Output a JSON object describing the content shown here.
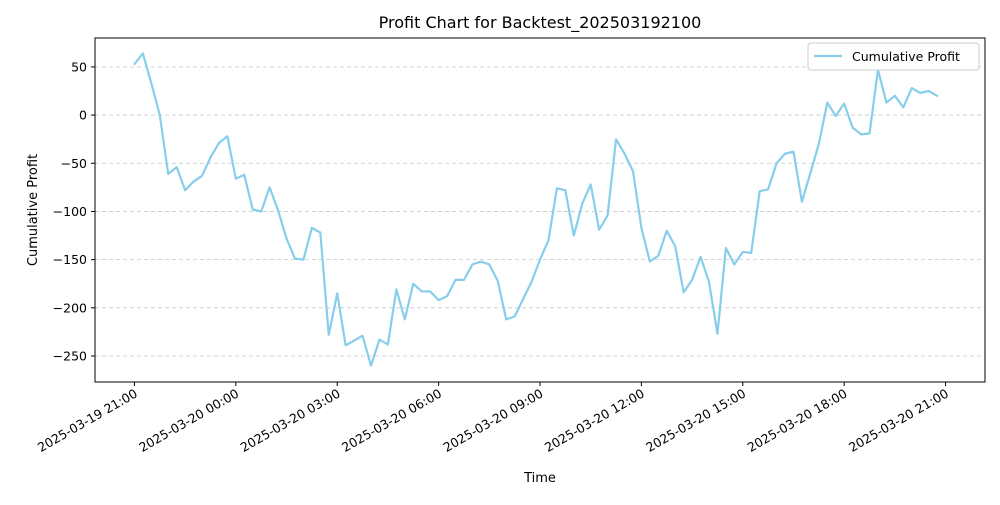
{
  "chart_data": {
    "type": "line",
    "title": "Profit Chart for Backtest_202503192100",
    "xlabel": "Time",
    "ylabel": "Cumulative Profit",
    "ylim": [
      -277,
      80
    ],
    "xlim": [
      "2025-03-19 19:50",
      "2025-03-20 22:10"
    ],
    "grid": "y-only, dashed",
    "legend": {
      "placement": "top-right",
      "entries": [
        "Cumulative Profit"
      ]
    },
    "x_ticks": [
      "2025-03-19 21:00",
      "2025-03-20 00:00",
      "2025-03-20 03:00",
      "2025-03-20 06:00",
      "2025-03-20 09:00",
      "2025-03-20 12:00",
      "2025-03-20 15:00",
      "2025-03-20 18:00",
      "2025-03-20 21:00"
    ],
    "y_ticks": [
      "50",
      "0",
      "−50",
      "−100",
      "−150",
      "−200",
      "−250"
    ],
    "series": [
      {
        "name": "Cumulative Profit",
        "color": "#87CEEB",
        "start": "2025-03-19 21:00",
        "interval_minutes": 15,
        "values": [
          53,
          64,
          33,
          0,
          -61,
          -54,
          -78,
          -69,
          -63,
          -44,
          -29,
          -22,
          -66,
          -62,
          -98,
          -100,
          -75,
          -99,
          -128,
          -149,
          -150,
          -117,
          -122,
          -228,
          -185,
          -239,
          -234,
          -229,
          -260,
          -233,
          -238,
          -181,
          -212,
          -175,
          -183,
          -183,
          -192,
          -188,
          -171,
          -171,
          -155,
          -152,
          -155,
          -172,
          -212,
          -209,
          -191,
          -173,
          -150,
          -130,
          -76,
          -78,
          -125,
          -92,
          -72,
          -119,
          -104,
          -25,
          -40,
          -58,
          -117,
          -152,
          -146,
          -120,
          -136,
          -184,
          -171,
          -147,
          -173,
          -227,
          -138,
          -155,
          -142,
          -143,
          -79,
          -77,
          -50,
          -40,
          -38,
          -90,
          -60,
          -30,
          13,
          -1,
          12,
          -13,
          -20,
          -19,
          47,
          13,
          20,
          8,
          28,
          23,
          25,
          20
        ]
      }
    ]
  }
}
